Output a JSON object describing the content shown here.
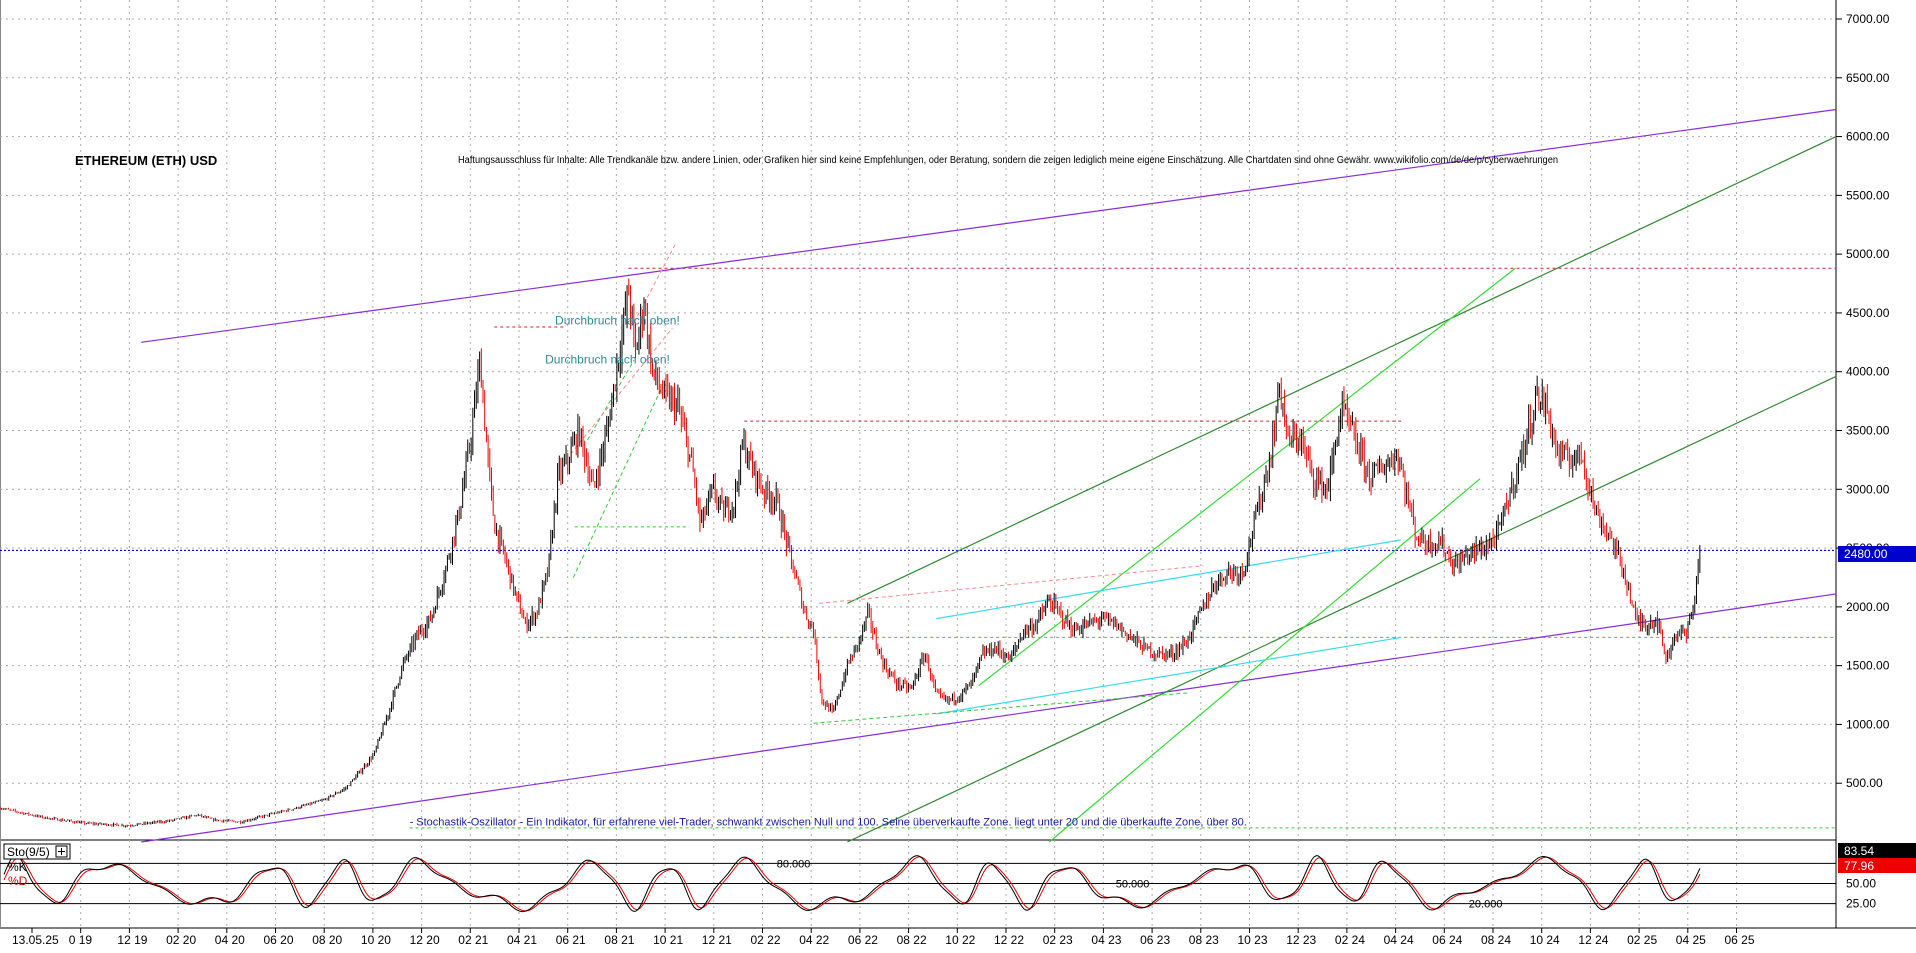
{
  "chart_data": {
    "type": "candlestick",
    "title": "ETHEREUM (ETH) USD",
    "disclaimer": "Haftungsausschluss für Inhalte: Alle Trendkanäle bzw. andere Linien, oder Grafiken hier sind keine Empfehlungen, oder Beratung, sondern die zeigen lediglich meine eigene Einschätzung. Alle Chartdaten sind ohne Gewähr. www.wikifolio.com/de/de/p/cyberwaehrungen",
    "x_labels": [
      "13.05.25",
      "0 19",
      "12 19",
      "02 20",
      "04 20",
      "06 20",
      "08 20",
      "10 20",
      "12 20",
      "02 21",
      "04 21",
      "06 21",
      "08 21",
      "10 21",
      "12 21",
      "02 22",
      "04 22",
      "06 22",
      "08 22",
      "10 22",
      "12 22",
      "02 23",
      "04 23",
      "06 23",
      "08 23",
      "10 23",
      "12 23",
      "02 24",
      "04 24",
      "06 24",
      "08 24",
      "10 24",
      "12 24",
      "02 25",
      "04 25",
      "06 25"
    ],
    "y_ticks": [
      "7000.00",
      "6500.00",
      "6000.00",
      "5500.00",
      "5000.00",
      "4500.00",
      "4000.00",
      "3500.00",
      "3000.00",
      "2500.00",
      "2000.00",
      "1500.00",
      "1000.00",
      "500.00"
    ],
    "ylim": [
      0,
      7100
    ],
    "last_price_label": "2480.00",
    "last_price": 2480,
    "price_path": [
      [
        0,
        290
      ],
      [
        3,
        210
      ],
      [
        6,
        160
      ],
      [
        9,
        140
      ],
      [
        12,
        180
      ],
      [
        14,
        230
      ],
      [
        15,
        190
      ],
      [
        17,
        170
      ],
      [
        19,
        230
      ],
      [
        21,
        290
      ],
      [
        23,
        360
      ],
      [
        24.5,
        460
      ],
      [
        25.5,
        600
      ],
      [
        26.5,
        750
      ],
      [
        27.5,
        1100
      ],
      [
        28.5,
        1500
      ],
      [
        29.5,
        1750
      ],
      [
        30.5,
        1900
      ],
      [
        31.5,
        2300
      ],
      [
        32.5,
        2800
      ],
      [
        33.3,
        3400
      ],
      [
        34,
        4100
      ],
      [
        34.5,
        3300
      ],
      [
        35,
        2700
      ],
      [
        35.8,
        2400
      ],
      [
        36.5,
        2100
      ],
      [
        37.2,
        1850
      ],
      [
        38,
        1950
      ],
      [
        38.8,
        2300
      ],
      [
        39.5,
        3100
      ],
      [
        40.2,
        3250
      ],
      [
        41,
        3500
      ],
      [
        42,
        3000
      ],
      [
        43,
        3500
      ],
      [
        44,
        4300
      ],
      [
        44.5,
        4700
      ],
      [
        45,
        4150
      ],
      [
        45.6,
        4600
      ],
      [
        46.2,
        4000
      ],
      [
        47,
        3800
      ],
      [
        48,
        3700
      ],
      [
        49,
        3200
      ],
      [
        49.6,
        2700
      ],
      [
        50.5,
        3000
      ],
      [
        51.2,
        2800
      ],
      [
        52,
        2900
      ],
      [
        52.6,
        3400
      ],
      [
        53.2,
        3200
      ],
      [
        54,
        3000
      ],
      [
        55,
        2900
      ],
      [
        56,
        2400
      ],
      [
        57,
        1950
      ],
      [
        57.6,
        1800
      ],
      [
        58.2,
        1200
      ],
      [
        59,
        1100
      ],
      [
        60,
        1500
      ],
      [
        60.8,
        1700
      ],
      [
        61.5,
        1950
      ],
      [
        62,
        1700
      ],
      [
        62.6,
        1500
      ],
      [
        63.5,
        1350
      ],
      [
        64.5,
        1300
      ],
      [
        65.5,
        1600
      ],
      [
        66.3,
        1250
      ],
      [
        67,
        1200
      ],
      [
        68,
        1250
      ],
      [
        68.8,
        1350
      ],
      [
        69.6,
        1600
      ],
      [
        70.5,
        1650
      ],
      [
        71.5,
        1550
      ],
      [
        72.5,
        1800
      ],
      [
        73.3,
        1850
      ],
      [
        74.3,
        2050
      ],
      [
        75,
        1950
      ],
      [
        76,
        1800
      ],
      [
        77,
        1850
      ],
      [
        78,
        1900
      ],
      [
        79,
        1850
      ],
      [
        80,
        1750
      ],
      [
        81,
        1650
      ],
      [
        82,
        1600
      ],
      [
        83,
        1600
      ],
      [
        84,
        1700
      ],
      [
        85,
        1950
      ],
      [
        86,
        2200
      ],
      [
        87,
        2300
      ],
      [
        88,
        2300
      ],
      [
        89,
        2800
      ],
      [
        90,
        3300
      ],
      [
        90.6,
        3900
      ],
      [
        91.2,
        3400
      ],
      [
        92,
        3450
      ],
      [
        93,
        3100
      ],
      [
        94,
        3000
      ],
      [
        95,
        3700
      ],
      [
        96,
        3400
      ],
      [
        97,
        3100
      ],
      [
        98,
        3200
      ],
      [
        99,
        3300
      ],
      [
        99.7,
        2900
      ],
      [
        100.3,
        2600
      ],
      [
        101,
        2550
      ],
      [
        102,
        2550
      ],
      [
        103,
        2350
      ],
      [
        104,
        2450
      ],
      [
        105,
        2500
      ],
      [
        106,
        2600
      ],
      [
        107,
        3000
      ],
      [
        108,
        3400
      ],
      [
        108.8,
        3800
      ],
      [
        109.5,
        3700
      ],
      [
        110.3,
        3300
      ],
      [
        111,
        3250
      ],
      [
        112,
        3300
      ],
      [
        113,
        2800
      ],
      [
        114,
        2600
      ],
      [
        115,
        2300
      ],
      [
        115.8,
        1900
      ],
      [
        116.6,
        1850
      ],
      [
        117.3,
        1900
      ],
      [
        118,
        1550
      ],
      [
        118.7,
        1800
      ],
      [
        119.4,
        1750
      ],
      [
        120,
        2100
      ],
      [
        120.4,
        2480
      ]
    ],
    "trendlines": [
      {
        "color": "#8a2be2",
        "from": [
          10,
          4250
        ],
        "to": [
          130,
          6230
        ]
      },
      {
        "color": "#8a2be2",
        "from": [
          10,
          0
        ],
        "to": [
          130,
          2110
        ]
      },
      {
        "color": "#2e8b2e",
        "from": [
          60,
          2030
        ],
        "to": [
          130,
          6000
        ]
      },
      {
        "color": "#2e8b2e",
        "from": [
          60,
          0
        ],
        "to": [
          130,
          3960
        ]
      },
      {
        "color": "#33dd33",
        "from": [
          69.3,
          1330
        ],
        "to": [
          107.3,
          4880
        ]
      },
      {
        "color": "#33dd33",
        "from": [
          74.3,
          0
        ],
        "to": [
          104.8,
          3090
        ]
      },
      {
        "color": "#33ddee",
        "from": [
          66.3,
          1900
        ],
        "to": [
          99.2,
          2570
        ]
      },
      {
        "color": "#33ddee",
        "from": [
          66.3,
          1090
        ],
        "to": [
          99.2,
          1740
        ]
      }
    ],
    "dotted_levels": [
      {
        "color": "#cc2233",
        "y": 4880,
        "from": 44.5,
        "to": 130
      },
      {
        "color": "#cc2233",
        "y": 3580,
        "from": 52.7,
        "to": 99.2
      },
      {
        "color": "#cc2233",
        "y": 4380,
        "from": 35,
        "to": 40
      },
      {
        "color": "#33cc33",
        "y": 1740,
        "from": 37.4,
        "to": 130
      },
      {
        "color": "#33cc33",
        "y": 2680,
        "from": 40.7,
        "to": 48.8
      },
      {
        "color": "#33cc33",
        "y": 120,
        "from": 29,
        "to": 130
      }
    ],
    "dashed_segments": [
      {
        "color": "#33cc33",
        "from": [
          40.6,
          2250
        ],
        "to": [
          46.8,
          3850
        ]
      },
      {
        "color": "#33cc33",
        "from": [
          41.6,
          3420
        ],
        "to": [
          44.9,
          4100
        ]
      },
      {
        "color": "#33cc33",
        "from": [
          57.6,
          1010
        ],
        "to": [
          84.3,
          1270
        ]
      },
      {
        "color": "#ff8888",
        "from": [
          40.4,
          3300
        ],
        "to": [
          47.6,
          4370
        ]
      },
      {
        "color": "#ff8888",
        "from": [
          44.9,
          4420
        ],
        "to": [
          47.8,
          5080
        ]
      },
      {
        "color": "#ff8888",
        "from": [
          58,
          2030
        ],
        "to": [
          85.2,
          2350
        ]
      }
    ],
    "annotations": [
      {
        "text": "Durchbruch nach oben!",
        "x": 39.3,
        "y": 4400,
        "color": "#2e8b9a"
      },
      {
        "text": "Durchbruch nach oben!",
        "x": 38.6,
        "y": 4070,
        "color": "#2e8b9a"
      },
      {
        "text": "- Stochastik-Oszillator - Ein Indikator, für erfahrene viel-Trader, schwankt zwischen Null und 100. Seine überverkaufte Zone. liegt unter 20 und die überkaufte Zone, über 80.",
        "x": 29,
        "y": 140,
        "color": "#1a1aa0"
      }
    ],
    "x_index_max": 130,
    "oscillator": {
      "name": "Sto(9/5)",
      "k_label": "%K",
      "d_label": "%D",
      "k_value": "83.54",
      "d_value": "77.96",
      "level_labels": [
        "80.000",
        "50.000",
        "20.000"
      ],
      "scale_labels": [
        "50.00",
        "25.00"
      ],
      "ylim": [
        0,
        100
      ],
      "levels": [
        80,
        50,
        20
      ]
    }
  },
  "icons": {
    "oscillator_expand": "plus-box-icon"
  }
}
